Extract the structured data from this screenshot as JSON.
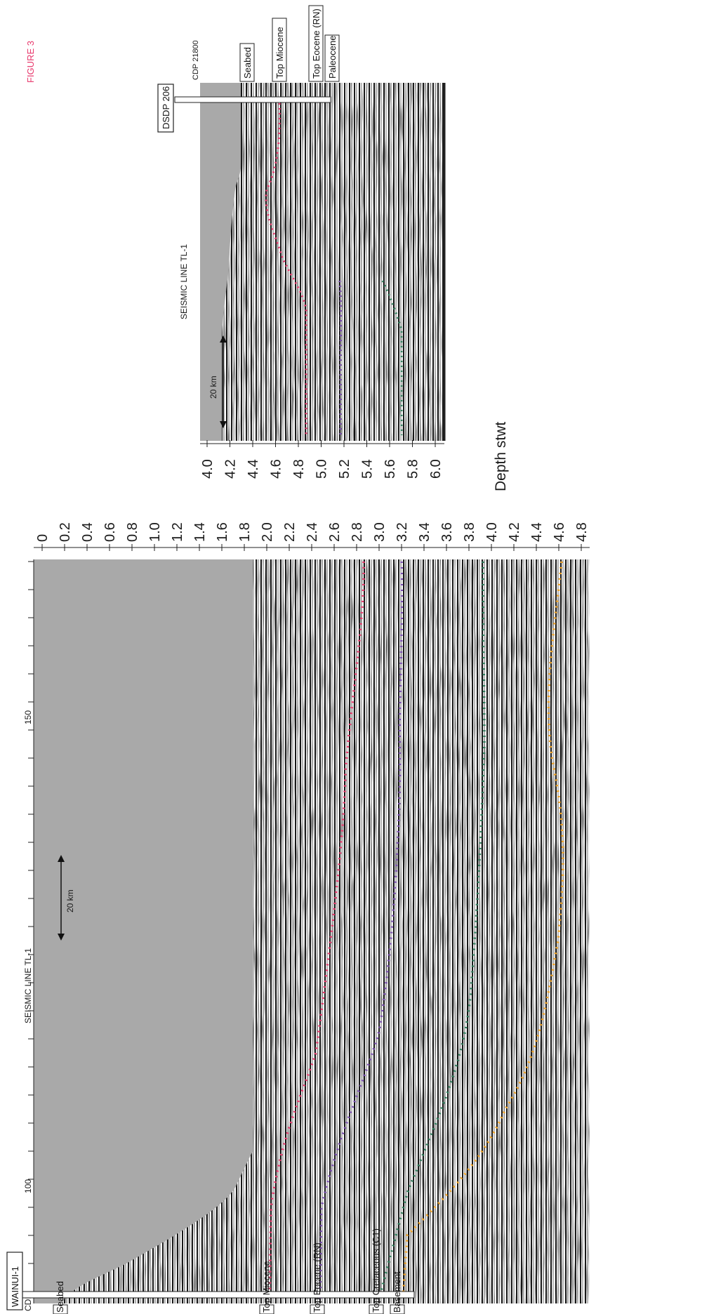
{
  "figure_label": "FIGURE 3",
  "colors": {
    "figure_label": "#e8386c",
    "seabed_water": "#a9a9a9",
    "top_miocene": "#e8386c",
    "top_eocene": "#7a4fb0",
    "top_cretaceous": "#2e7d5b",
    "basement": "#f0a020"
  },
  "panel_top": {
    "title": "SEISMIC LINE TL-1",
    "scale_bar": "20 km",
    "well": "DSDP 206",
    "cdp_label": "CDP 21800",
    "horizons": [
      "Seabed",
      "Top Miocene",
      "Top Eocene (RN)",
      "Paleocene"
    ],
    "axis_title": "Depth stwt",
    "axis_ticks": [
      "4.0",
      "4.2",
      "4.4",
      "4.6",
      "4.8",
      "5.0",
      "5.2",
      "5.4",
      "5.6",
      "5.8",
      "6.0"
    ]
  },
  "panel_bottom": {
    "title": "SEISMIC LINE TL-1",
    "scale_bar": "20 km",
    "well": "WAINUI-1",
    "cdp_axis_label": "CDP",
    "cdp_ticks": [
      "100",
      "150"
    ],
    "horizons": [
      "Seabed",
      "Top Miocene",
      "Top Eocene (RN)",
      "Top Cretaceous (C1)",
      "Basement"
    ],
    "axis_ticks": [
      "0",
      "0.2",
      "0.4",
      "0.6",
      "0.8",
      "1.0",
      "1.2",
      "1.4",
      "1.6",
      "1.8",
      "2.0",
      "2.2",
      "2.4",
      "2.6",
      "2.8",
      "3.0",
      "3.2",
      "3.4",
      "3.6",
      "3.8",
      "4.0",
      "4.2",
      "4.4",
      "4.6",
      "4.8"
    ]
  }
}
